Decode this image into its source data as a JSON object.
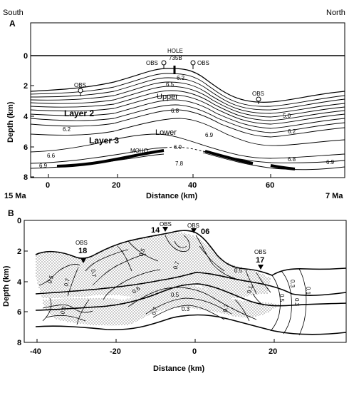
{
  "header": {
    "left": "South",
    "right": "North"
  },
  "panel_a": {
    "label": "A",
    "ylabel": "Depth (km)",
    "xlabel": "Distance (km)",
    "yticks": [
      "0",
      "2",
      "4",
      "6",
      "8"
    ],
    "xticks": [
      "0",
      "20",
      "40",
      "60"
    ],
    "left_age": "15 Ma",
    "right_age": "7 Ma",
    "hole": "HOLE",
    "hole_id": "735B",
    "obs": [
      "OBS",
      "OBS",
      "OBS",
      "OBS"
    ],
    "layers": [
      "Layer 2",
      "Layer 3"
    ],
    "regions": [
      "Upper",
      "Lower"
    ],
    "moho": "MOHO",
    "contours": [
      "6.2",
      "6.5",
      "6.8",
      "6.9",
      "7.8",
      "5.0",
      "6.2",
      "6.2",
      "6.6",
      "6.9",
      "6.9",
      "6.8",
      "6.9"
    ]
  },
  "panel_b": {
    "label": "B",
    "ylabel": "Depth (km)",
    "xlabel": "Distance (km)",
    "yticks": [
      "0",
      "2",
      "4",
      "6",
      "8"
    ],
    "xticks": [
      "-40",
      "-20",
      "0",
      "20"
    ],
    "obs_label": "OBS",
    "obs_ids": [
      "18",
      "14",
      "06",
      "17"
    ],
    "contours": [
      "0.5",
      "0.7",
      "0.6",
      "0.7",
      "0.5",
      "0.7",
      "0.5",
      "0.1",
      "0.5",
      "0.1",
      "0.3",
      "0.5",
      "0.7",
      "0.5",
      "0.7",
      "0.3",
      "0.3"
    ]
  }
}
